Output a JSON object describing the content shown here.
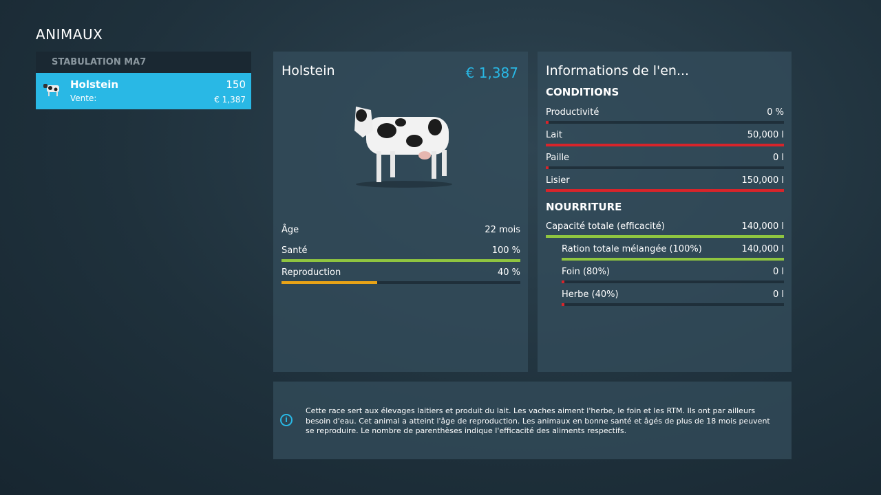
{
  "page_title": "ANIMAUX",
  "sidebar": {
    "header": "STABULATION MA7",
    "items": [
      {
        "name": "Holstein",
        "count": "150",
        "sub_label": "Vente:",
        "price": "€ 1,387"
      }
    ]
  },
  "animal": {
    "name": "Holstein",
    "price": "€ 1,387",
    "stats": [
      {
        "label": "Âge",
        "value": "22 mois"
      },
      {
        "label": "Santé",
        "value": "100 %",
        "fill": 100,
        "color": "#8fc540"
      },
      {
        "label": "Reproduction",
        "value": "40 %",
        "fill": 40,
        "color": "#e8a317"
      }
    ]
  },
  "info_panel": {
    "title": "Informations de l'en...",
    "conditions_title": "CONDITIONS",
    "conditions": [
      {
        "label": "Productivité",
        "value": "0 %",
        "fill": 0,
        "color": "#d8242a"
      },
      {
        "label": "Lait",
        "value": "50,000 l",
        "fill": 100,
        "color": "#d8242a"
      },
      {
        "label": "Paille",
        "value": "0 l",
        "fill": 0,
        "color": "#d8242a"
      },
      {
        "label": "Lisier",
        "value": "150,000 l",
        "fill": 100,
        "color": "#d8242a"
      }
    ],
    "food_title": "NOURRITURE",
    "food": [
      {
        "label": "Capacité totale (efficacité)",
        "value": "140,000 l",
        "fill": 100,
        "color": "#8fc540"
      },
      {
        "label": "Ration totale mélangée (100%)",
        "value": "140,000 l",
        "fill": 100,
        "color": "#8fc540"
      },
      {
        "label": "Foin (80%)",
        "value": "0 l",
        "fill": 0,
        "color": "#d8242a"
      },
      {
        "label": "Herbe (40%)",
        "value": "0 l",
        "fill": 0,
        "color": "#d8242a"
      }
    ]
  },
  "description": "Cette race sert aux élevages laitiers et produit du lait. Les vaches aiment l'herbe, le foin et les RTM. Ils ont par ailleurs besoin d'eau. Cet animal a atteint l'âge de reproduction. Les animaux en bonne santé et âgés de plus de 18 mois peuvent se reproduire. Le nombre de parenthèses indique l'efficacité des aliments respectifs.",
  "accent": "#29b8e5"
}
